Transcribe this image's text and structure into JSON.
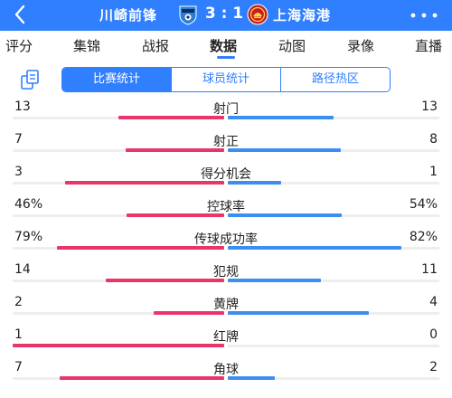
{
  "header": {
    "home_team": "川崎前锋",
    "score": "3 : 1",
    "away_team": "上海海港",
    "back_icon": "chevron-left-icon",
    "more_icon": "more-dots-icon",
    "home_crest_icon": "kawasaki-frontale-crest-icon",
    "away_crest_icon": "shanghai-port-crest-icon",
    "bg_color": "#2f7fff"
  },
  "tabs": [
    {
      "label": "评分"
    },
    {
      "label": "集锦"
    },
    {
      "label": "战报"
    },
    {
      "label": "数据",
      "active": true
    },
    {
      "label": "动图"
    },
    {
      "label": "录像"
    },
    {
      "label": "直播"
    }
  ],
  "segmented": {
    "share_icon": "share-icon",
    "items": [
      {
        "label": "比赛统计",
        "active": true
      },
      {
        "label": "球员统计"
      },
      {
        "label": "路径热区"
      }
    ]
  },
  "colors": {
    "home": "#e8366b",
    "away": "#3b8ff0"
  },
  "stats": [
    {
      "label": "射门",
      "left": "13",
      "right": "13",
      "left_frac": 0.5,
      "right_frac": 0.5
    },
    {
      "label": "射正",
      "left": "7",
      "right": "8",
      "left_frac": 0.467,
      "right_frac": 0.533
    },
    {
      "label": "得分机会",
      "left": "3",
      "right": "1",
      "left_frac": 0.75,
      "right_frac": 0.25
    },
    {
      "label": "控球率",
      "left": "46%",
      "right": "54%",
      "left_frac": 0.46,
      "right_frac": 0.54
    },
    {
      "label": "传球成功率",
      "left": "79%",
      "right": "82%",
      "left_frac": 0.79,
      "right_frac": 0.82
    },
    {
      "label": "犯规",
      "left": "14",
      "right": "11",
      "left_frac": 0.56,
      "right_frac": 0.44
    },
    {
      "label": "黄牌",
      "left": "2",
      "right": "4",
      "left_frac": 0.333,
      "right_frac": 0.667
    },
    {
      "label": "红牌",
      "left": "1",
      "right": "0",
      "left_frac": 1.0,
      "right_frac": 0.0
    },
    {
      "label": "角球",
      "left": "7",
      "right": "2",
      "left_frac": 0.778,
      "right_frac": 0.222
    }
  ]
}
